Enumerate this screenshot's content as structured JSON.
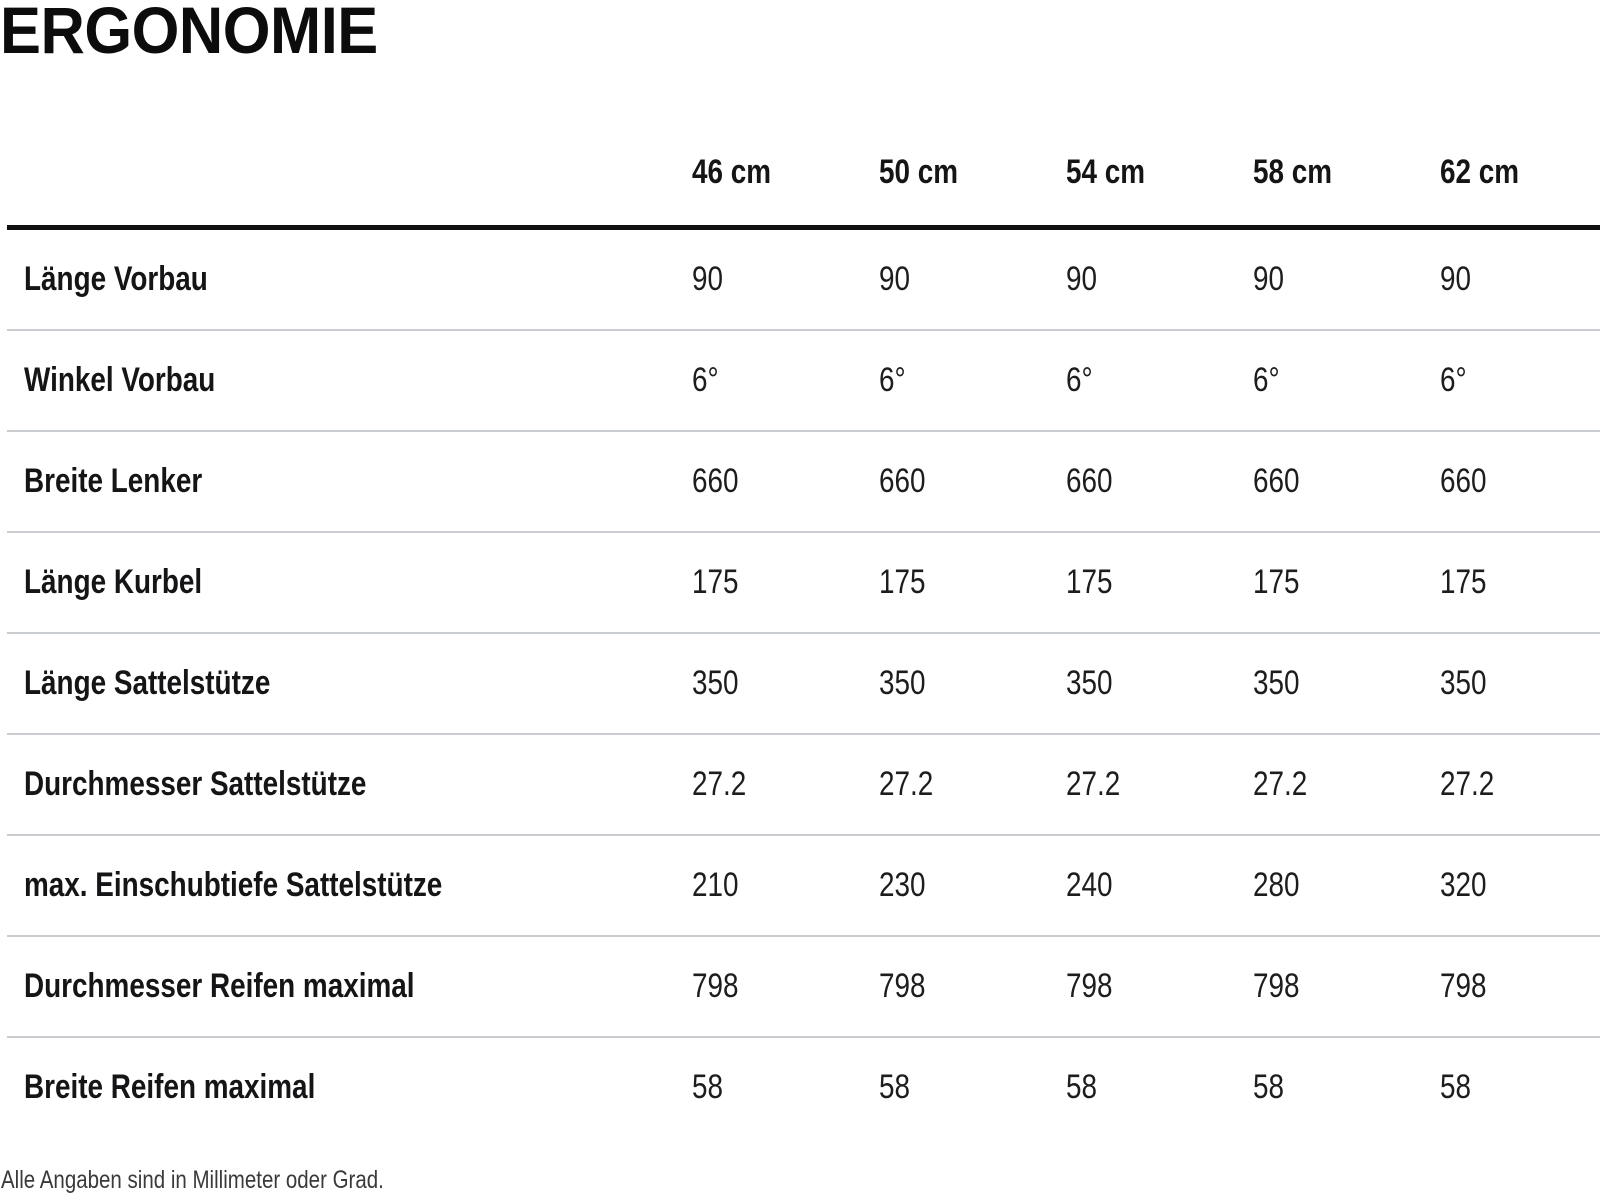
{
  "title": "ERGONOMIE",
  "table": {
    "columns": [
      "46 cm",
      "50 cm",
      "54 cm",
      "58 cm",
      "62 cm"
    ],
    "rows": [
      {
        "label": "Länge Vorbau",
        "values": [
          "90",
          "90",
          "90",
          "90",
          "90"
        ]
      },
      {
        "label": "Winkel Vorbau",
        "values": [
          "6°",
          "6°",
          "6°",
          "6°",
          "6°"
        ]
      },
      {
        "label": "Breite Lenker",
        "values": [
          "660",
          "660",
          "660",
          "660",
          "660"
        ]
      },
      {
        "label": "Länge Kurbel",
        "values": [
          "175",
          "175",
          "175",
          "175",
          "175"
        ]
      },
      {
        "label": "Länge Sattelstütze",
        "values": [
          "350",
          "350",
          "350",
          "350",
          "350"
        ]
      },
      {
        "label": "Durchmesser Sattelstütze",
        "values": [
          "27.2",
          "27.2",
          "27.2",
          "27.2",
          "27.2"
        ]
      },
      {
        "label": "max. Einschubtiefe Sattelstütze",
        "values": [
          "210",
          "230",
          "240",
          "280",
          "320"
        ]
      },
      {
        "label": "Durchmesser Reifen maximal",
        "values": [
          "798",
          "798",
          "798",
          "798",
          "798"
        ]
      },
      {
        "label": "Breite Reifen maximal",
        "values": [
          "58",
          "58",
          "58",
          "58",
          "58"
        ]
      }
    ]
  },
  "footnote": "Alle Angaben sind in Millimeter oder Grad.",
  "colors": {
    "heavy_rule": "#101010",
    "row_rule": "#c9cdd2",
    "text": "#1d1d1f",
    "footnote_text": "#3a3a3a",
    "background": "#ffffff"
  }
}
